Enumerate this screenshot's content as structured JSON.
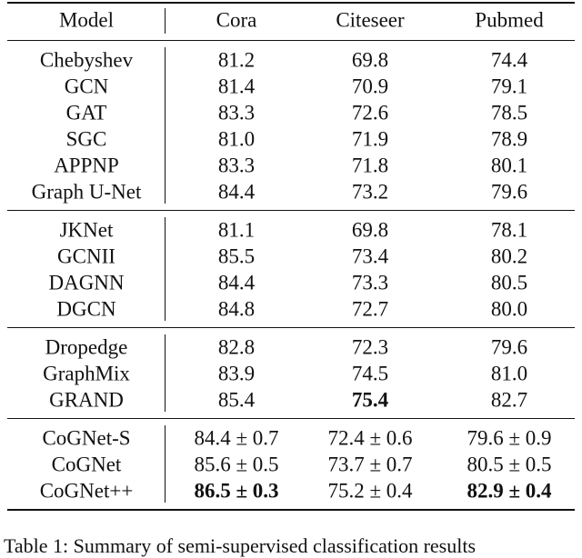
{
  "header": [
    "Model",
    "Cora",
    "Citeseer",
    "Pubmed"
  ],
  "groups": [
    {
      "rows": [
        {
          "cells": [
            "Chebyshev",
            "81.2",
            "69.8",
            "74.4"
          ],
          "bold": []
        },
        {
          "cells": [
            "GCN",
            "81.4",
            "70.9",
            "79.1"
          ],
          "bold": []
        },
        {
          "cells": [
            "GAT",
            "83.3",
            "72.6",
            "78.5"
          ],
          "bold": []
        },
        {
          "cells": [
            "SGC",
            "81.0",
            "71.9",
            "78.9"
          ],
          "bold": []
        },
        {
          "cells": [
            "APPNP",
            "83.3",
            "71.8",
            "80.1"
          ],
          "bold": []
        },
        {
          "cells": [
            "Graph U-Net",
            "84.4",
            "73.2",
            "79.6"
          ],
          "bold": []
        }
      ]
    },
    {
      "rows": [
        {
          "cells": [
            "JKNet",
            "81.1",
            "69.8",
            "78.1"
          ],
          "bold": []
        },
        {
          "cells": [
            "GCNII",
            "85.5",
            "73.4",
            "80.2"
          ],
          "bold": []
        },
        {
          "cells": [
            "DAGNN",
            "84.4",
            "73.3",
            "80.5"
          ],
          "bold": []
        },
        {
          "cells": [
            "DGCN",
            "84.8",
            "72.7",
            "80.0"
          ],
          "bold": []
        }
      ]
    },
    {
      "rows": [
        {
          "cells": [
            "Dropedge",
            "82.8",
            "72.3",
            "79.6"
          ],
          "bold": []
        },
        {
          "cells": [
            "GraphMix",
            "83.9",
            "74.5",
            "81.0"
          ],
          "bold": []
        },
        {
          "cells": [
            "GRAND",
            "85.4",
            "75.4",
            "82.7"
          ],
          "bold": [
            2
          ]
        }
      ]
    },
    {
      "rows": [
        {
          "cells": [
            "CoGNet-S",
            "84.4 ± 0.7",
            "72.4 ± 0.6",
            "79.6 ± 0.9"
          ],
          "bold": []
        },
        {
          "cells": [
            "CoGNet",
            "85.6 ± 0.5",
            "73.7 ± 0.7",
            "80.5 ± 0.5"
          ],
          "bold": []
        },
        {
          "cells": [
            "CoGNet++",
            "86.5 ± 0.3",
            "75.2 ± 0.4",
            "82.9 ± 0.4"
          ],
          "bold": [
            1,
            3
          ]
        }
      ]
    }
  ],
  "caption": "Table 1: Summary of semi-supervised classification results"
}
